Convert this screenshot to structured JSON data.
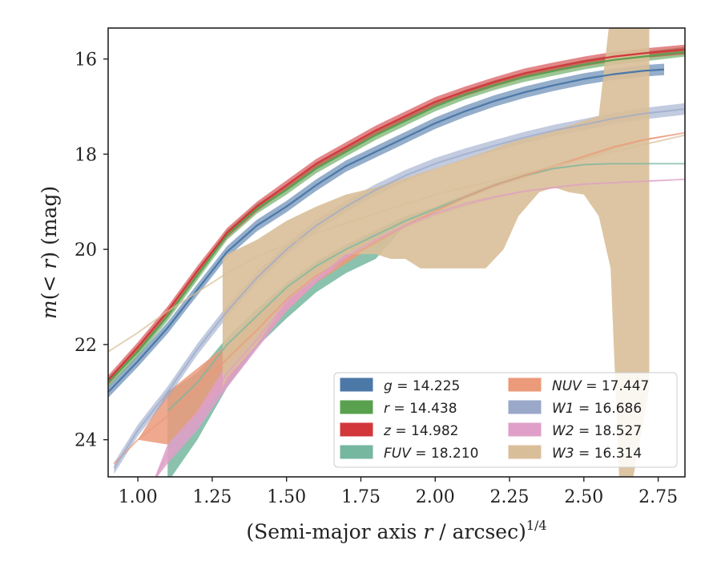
{
  "chart_data": {
    "type": "line",
    "xlabel": "(Semi-major axis r / arcsec)",
    "xlabel_main": "(Semi-major axis ",
    "xlabel_var": "r",
    "xlabel_rest": " / arcsec)",
    "xlabel_sup": "1/4",
    "ylabel": "m(< r) (mag)",
    "ylabel_var": "m",
    "ylabel_paren_open": "(",
    "ylabel_inner_op": "< ",
    "ylabel_inner_var": "r",
    "ylabel_paren_close": ")",
    "ylabel_unit": " (mag)",
    "xlim": [
      0.9,
      2.84
    ],
    "ylim": [
      24.78,
      15.35
    ],
    "y_inverted": true,
    "x_ticks": [
      1.0,
      1.25,
      1.5,
      1.75,
      2.0,
      2.25,
      2.5,
      2.75
    ],
    "x_tick_labels": [
      "1.00",
      "1.25",
      "1.50",
      "1.75",
      "2.00",
      "2.25",
      "2.50",
      "2.75"
    ],
    "y_ticks": [
      16,
      18,
      20,
      22,
      24
    ],
    "y_tick_labels": [
      "16",
      "18",
      "20",
      "22",
      "24"
    ],
    "grid": false,
    "legend_position": "bottom-right",
    "legend": [
      {
        "var": "g",
        "value": "14.225",
        "color": "#4c78a8"
      },
      {
        "var": "r",
        "value": "14.438",
        "color": "#59a14f"
      },
      {
        "var": "z",
        "value": "14.982",
        "color": "#d1373b"
      },
      {
        "var": "FUV",
        "value": "18.210",
        "color": "#76b7a0"
      },
      {
        "var": "NUV",
        "value": "17.447",
        "color": "#eb9a7a"
      },
      {
        "var": "W1",
        "value": "16.686",
        "color": "#9aa8c9"
      },
      {
        "var": "W2",
        "value": "18.527",
        "color": "#df9fc8"
      },
      {
        "var": "W3",
        "value": "16.314",
        "color": "#d9bf99"
      }
    ],
    "series": [
      {
        "name": "g",
        "color": "#4c78a8",
        "x": [
          0.9,
          1.0,
          1.1,
          1.2,
          1.3,
          1.4,
          1.5,
          1.6,
          1.7,
          1.8,
          1.9,
          2.0,
          2.1,
          2.2,
          2.3,
          2.4,
          2.5,
          2.6,
          2.7,
          2.77
        ],
        "y": [
          23.0,
          22.35,
          21.65,
          20.85,
          20.05,
          19.5,
          19.1,
          18.65,
          18.25,
          17.95,
          17.65,
          17.35,
          17.1,
          16.88,
          16.7,
          16.55,
          16.42,
          16.32,
          16.25,
          16.22
        ],
        "band": 0.12
      },
      {
        "name": "r",
        "color": "#59a14f",
        "x": [
          0.9,
          1.0,
          1.1,
          1.2,
          1.3,
          1.4,
          1.5,
          1.6,
          1.7,
          1.8,
          1.9,
          2.0,
          2.1,
          2.2,
          2.3,
          2.4,
          2.5,
          2.6,
          2.7,
          2.84
        ],
        "y": [
          22.8,
          22.15,
          21.4,
          20.55,
          19.7,
          19.15,
          18.75,
          18.3,
          17.95,
          17.6,
          17.3,
          17.0,
          16.75,
          16.55,
          16.38,
          16.25,
          16.12,
          16.02,
          15.95,
          15.85
        ],
        "band": 0.1
      },
      {
        "name": "z",
        "color": "#d1373b",
        "x": [
          0.9,
          1.0,
          1.1,
          1.2,
          1.3,
          1.4,
          1.5,
          1.6,
          1.7,
          1.8,
          1.9,
          2.0,
          2.1,
          2.2,
          2.3,
          2.4,
          2.5,
          2.6,
          2.7,
          2.84
        ],
        "y": [
          22.75,
          22.05,
          21.3,
          20.45,
          19.65,
          19.1,
          18.65,
          18.2,
          17.85,
          17.5,
          17.2,
          16.9,
          16.68,
          16.48,
          16.3,
          16.17,
          16.05,
          15.95,
          15.88,
          15.8
        ],
        "band": 0.1
      },
      {
        "name": "FUV",
        "color": "#76b7a0",
        "x": [
          1.1,
          1.2,
          1.3,
          1.4,
          1.5,
          1.6,
          1.7,
          1.8,
          1.9,
          2.0,
          2.1,
          2.2,
          2.3,
          2.4,
          2.5,
          2.6,
          2.7,
          2.84
        ],
        "y": [
          23.4,
          22.8,
          22.0,
          21.4,
          20.8,
          20.35,
          20.0,
          19.7,
          19.4,
          19.15,
          18.9,
          18.65,
          18.45,
          18.3,
          18.22,
          18.2,
          18.2,
          18.2
        ],
        "band_lo": [
          24.9,
          24.0,
          22.9,
          22.05,
          21.45,
          20.9,
          20.5,
          20.2,
          19.5,
          19.2,
          18.95,
          18.7,
          18.48,
          18.32,
          18.24,
          18.21,
          18.2,
          18.2
        ],
        "band_hi": [
          23.0,
          22.6,
          21.85,
          21.25,
          20.7,
          20.25,
          19.9,
          19.6,
          19.3,
          19.1,
          18.85,
          18.6,
          18.42,
          18.28,
          18.21,
          18.2,
          18.2,
          18.2
        ]
      },
      {
        "name": "NUV",
        "color": "#eb9a7a",
        "x": [
          0.92,
          1.0,
          1.1,
          1.2,
          1.3,
          1.4,
          1.5,
          1.6,
          1.7,
          1.8,
          1.9,
          2.0,
          2.1,
          2.2,
          2.3,
          2.4,
          2.5,
          2.6,
          2.7,
          2.84
        ],
        "y": [
          24.5,
          24.0,
          23.5,
          22.95,
          22.3,
          21.7,
          21.05,
          20.55,
          20.2,
          19.85,
          19.5,
          19.2,
          18.9,
          18.65,
          18.45,
          18.25,
          18.05,
          17.85,
          17.7,
          17.55
        ],
        "band_lo": [
          24.5,
          24.0,
          24.1,
          23.5,
          22.8,
          22.0,
          21.3,
          20.7,
          20.3,
          19.9,
          19.55,
          19.25,
          18.95,
          18.7,
          18.5,
          18.3,
          18.1,
          17.9,
          17.72,
          17.55
        ],
        "band_hi": [
          24.5,
          24.0,
          23.0,
          22.5,
          22.0,
          21.4,
          20.85,
          20.4,
          20.1,
          19.8,
          19.45,
          19.15,
          18.85,
          18.62,
          18.42,
          18.22,
          18.02,
          17.82,
          17.68,
          17.55
        ]
      },
      {
        "name": "W1",
        "color": "#9aa8c9",
        "x": [
          0.92,
          1.0,
          1.1,
          1.2,
          1.3,
          1.4,
          1.5,
          1.6,
          1.7,
          1.8,
          1.9,
          2.0,
          2.1,
          2.2,
          2.3,
          2.4,
          2.5,
          2.6,
          2.7,
          2.84
        ],
        "y": [
          24.6,
          23.8,
          23.0,
          22.1,
          21.3,
          20.6,
          20.0,
          19.5,
          19.1,
          18.75,
          18.45,
          18.2,
          18.0,
          17.82,
          17.65,
          17.5,
          17.38,
          17.25,
          17.15,
          17.05
        ],
        "band": 0.12
      },
      {
        "name": "W2",
        "color": "#df9fc8",
        "x": [
          1.05,
          1.1,
          1.2,
          1.3,
          1.4,
          1.5,
          1.6,
          1.7,
          1.8,
          1.9,
          2.0,
          2.1,
          2.2,
          2.3,
          2.4,
          2.5,
          2.6,
          2.7,
          2.84
        ],
        "y": [
          24.9,
          24.3,
          23.6,
          22.6,
          21.9,
          21.1,
          20.6,
          20.15,
          19.8,
          19.5,
          19.25,
          19.05,
          18.9,
          18.78,
          18.7,
          18.63,
          18.6,
          18.57,
          18.53
        ],
        "band_lo": [
          24.9,
          24.5,
          23.8,
          22.9,
          22.1,
          21.3,
          20.7,
          20.2,
          19.85,
          19.55,
          19.3,
          19.1,
          18.93,
          18.8,
          18.72,
          18.65,
          18.61,
          18.58,
          18.53
        ],
        "band_hi": [
          24.9,
          24.1,
          23.4,
          22.4,
          21.7,
          20.95,
          20.5,
          20.05,
          19.75,
          19.45,
          19.2,
          19.0,
          18.87,
          18.76,
          18.68,
          18.61,
          18.59,
          18.56,
          18.53
        ]
      },
      {
        "name": "W3",
        "color": "#d9bf99",
        "x": [
          0.9,
          1.0,
          1.1,
          1.2,
          1.3,
          1.4,
          1.5,
          1.6,
          1.7,
          1.8,
          1.9,
          2.0,
          2.1,
          2.2,
          2.3,
          2.4,
          2.5,
          2.6,
          2.7,
          2.84
        ],
        "y": [
          22.15,
          21.75,
          21.3,
          20.9,
          20.5,
          20.15,
          19.9,
          19.65,
          19.45,
          19.25,
          19.05,
          18.85,
          18.7,
          18.55,
          18.4,
          18.25,
          18.1,
          17.95,
          17.8,
          17.6
        ],
        "band_x": [
          1.285,
          1.3,
          1.4,
          1.5,
          1.6,
          1.7,
          1.8,
          1.85,
          1.9,
          1.95,
          2.0,
          2.1,
          2.17,
          2.23,
          2.28,
          2.35,
          2.4,
          2.45,
          2.5,
          2.55,
          2.59,
          2.62,
          2.66,
          2.72
        ],
        "band_hi": [
          20.2,
          20.1,
          19.8,
          19.4,
          19.1,
          18.85,
          18.7,
          18.6,
          18.5,
          18.4,
          18.3,
          18.1,
          17.95,
          17.8,
          17.7,
          17.6,
          17.5,
          17.4,
          17.3,
          17.2,
          15.0,
          15.0,
          15.0,
          15.0
        ],
        "band_lo": [
          22.9,
          22.7,
          22.0,
          21.1,
          20.6,
          20.1,
          20.1,
          20.2,
          20.2,
          20.4,
          20.4,
          20.4,
          20.4,
          20.0,
          19.3,
          18.8,
          18.7,
          18.8,
          18.85,
          19.3,
          20.4,
          25.0,
          25.0,
          22.9
        ]
      }
    ]
  }
}
